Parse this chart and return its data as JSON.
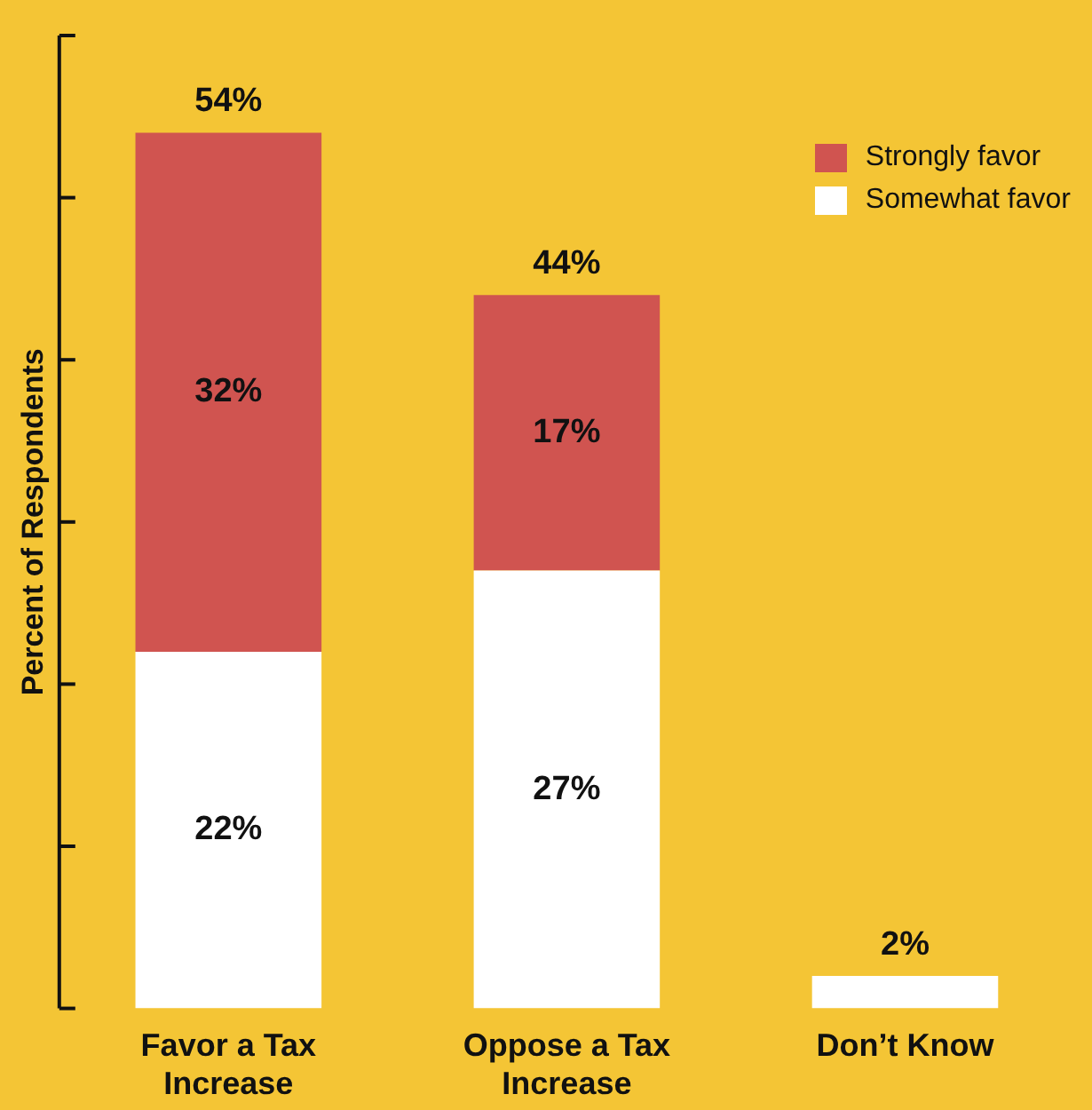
{
  "chart_data": {
    "type": "bar",
    "stacked": true,
    "ylabel": "Percent of Respondents",
    "categories": [
      "Favor a Tax Increase",
      "Oppose a Tax Increase",
      "Don’t Know"
    ],
    "series": [
      {
        "name": "Somewhat favor",
        "color": "#ffffff",
        "values": [
          22,
          27,
          2
        ],
        "value_labels": [
          "22%",
          "27%",
          "2%"
        ]
      },
      {
        "name": "Strongly favor",
        "color": "#d05450",
        "values": [
          32,
          17,
          null
        ],
        "value_labels": [
          "32%",
          "17%",
          null
        ]
      }
    ],
    "tick_labels": "x",
    "legend": "top right",
    "totals": [
      "54%",
      "44%",
      null
    ]
  }
}
